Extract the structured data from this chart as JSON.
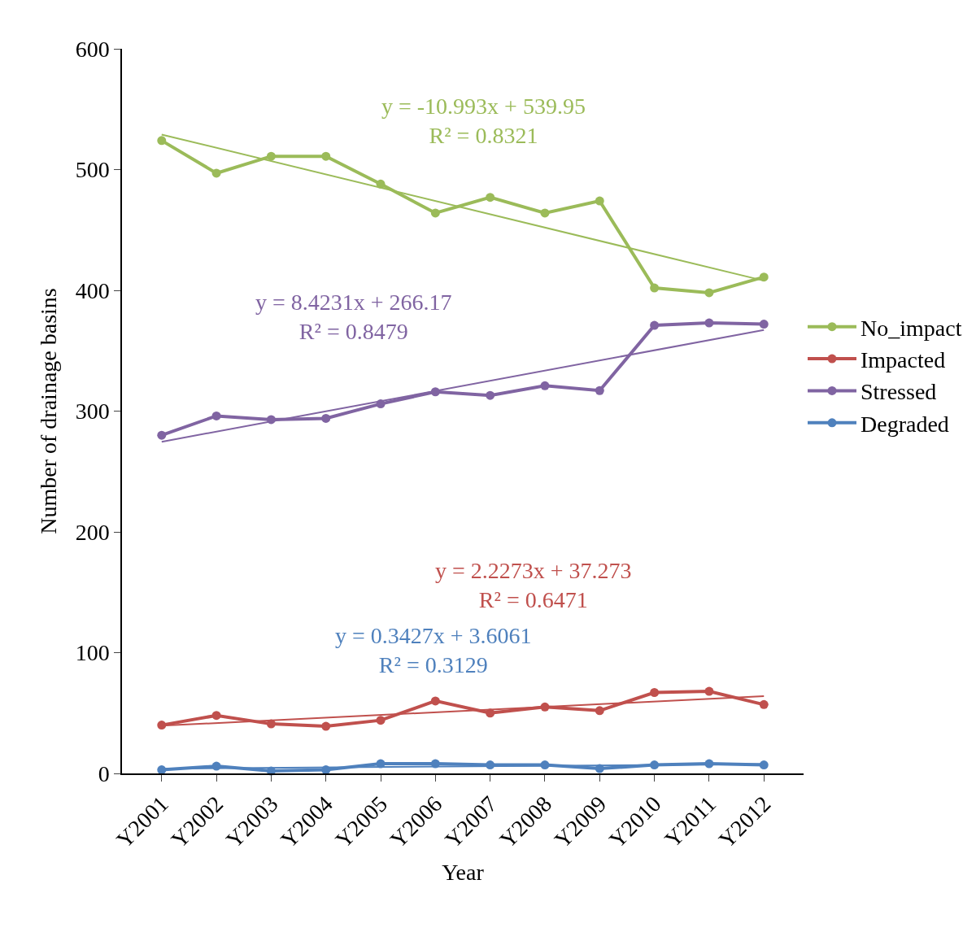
{
  "chart_data": {
    "type": "line",
    "xlabel": "Year",
    "ylabel": "Number of drainage basins",
    "categories": [
      "Y2001",
      "Y2002",
      "Y2003",
      "Y2004",
      "Y2005",
      "Y2006",
      "Y2007",
      "Y2008",
      "Y2009",
      "Y2010",
      "Y2011",
      "Y2012"
    ],
    "series": [
      {
        "name": "No_impact",
        "color": "#9bbb59",
        "values": [
          524,
          497,
          511,
          511,
          488,
          464,
          477,
          464,
          474,
          402,
          398,
          411
        ]
      },
      {
        "name": "Impacted",
        "color": "#c0504d",
        "values": [
          40,
          48,
          41,
          39,
          44,
          60,
          50,
          55,
          52,
          67,
          68,
          57
        ]
      },
      {
        "name": "Stressed",
        "color": "#8064a2",
        "values": [
          280,
          296,
          293,
          294,
          306,
          316,
          313,
          321,
          317,
          371,
          373,
          372
        ]
      },
      {
        "name": "Degraded",
        "color": "#4f81bd",
        "values": [
          3,
          6,
          2,
          3,
          8,
          8,
          7,
          7,
          4,
          7,
          8,
          7
        ]
      },
      {
        "type": "line",
        "color": "#9bbb59",
        "x": [
          "Y2001",
          "Y2012"
        ],
        "values": [
          529,
          408
        ],
        "marker": "none"
      },
      {
        "type": "line",
        "color": "#c0504d",
        "x": [
          "Y2001",
          "Y2012"
        ],
        "values": [
          39.5,
          64
        ],
        "marker": "none"
      },
      {
        "type": "line",
        "color": "#8064a2",
        "x": [
          "Y2001",
          "Y2012"
        ],
        "values": [
          274.6,
          367.2
        ],
        "marker": "none"
      },
      {
        "type": "line",
        "color": "#4f81bd",
        "x": [
          "Y2001",
          "Y2012"
        ],
        "values": [
          3.9,
          7.7
        ],
        "marker": "none"
      }
    ],
    "annotations": [
      "y = -10.993x + 539.95\nR² = 0.8321",
      "y = 2.2273x + 37.273\nR² = 0.6471",
      "y = 8.4231x + 266.17\nR² = 0.8479",
      "y = 0.3427x + 3.6061\nR² = 0.3129"
    ],
    "ylim": [
      0,
      600
    ],
    "yticks": [
      0,
      100,
      200,
      300,
      400,
      500,
      600
    ],
    "legend": "right",
    "marker": "circle",
    "line_style": "solid"
  }
}
